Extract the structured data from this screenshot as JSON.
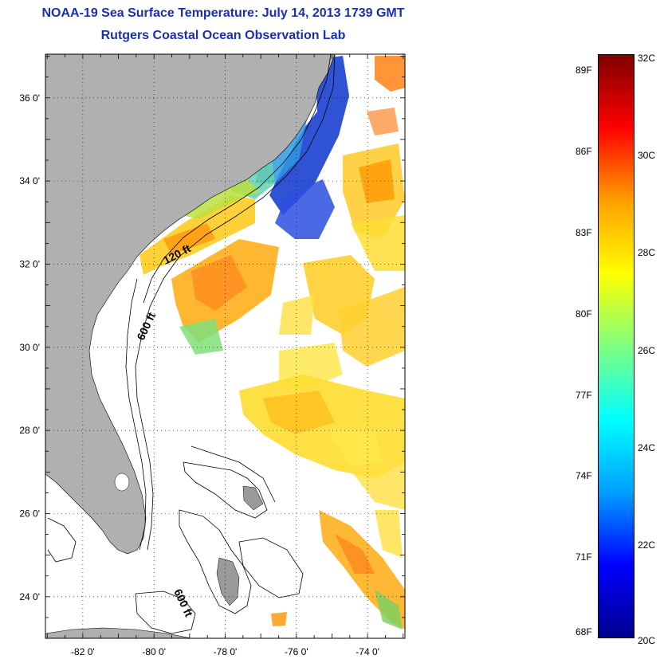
{
  "title": {
    "line1": "NOAA-19 Sea Surface Temperature:  July 14, 2013 1739 GMT",
    "line2": "Rutgers Coastal Ocean Observation Lab"
  },
  "map": {
    "lon_range": [
      -83,
      -73
    ],
    "lat_range": [
      23,
      37
    ],
    "lon_ticks": [
      {
        "value": -82,
        "label": "-82 0'"
      },
      {
        "value": -80,
        "label": "-80 0'"
      },
      {
        "value": -78,
        "label": "-78 0'"
      },
      {
        "value": -76,
        "label": "-76 0'"
      },
      {
        "value": -74,
        "label": "-74 0'"
      }
    ],
    "lat_ticks": [
      {
        "value": 24,
        "label": "24 0'"
      },
      {
        "value": 26,
        "label": "26 0'"
      },
      {
        "value": 28,
        "label": "28 0'"
      },
      {
        "value": 30,
        "label": "30 0'"
      },
      {
        "value": 32,
        "label": "32 0'"
      },
      {
        "value": 34,
        "label": "34 0'"
      },
      {
        "value": 36,
        "label": "36 0'"
      }
    ],
    "depth_labels": [
      "120 ft",
      "600 ft",
      "600 ft"
    ],
    "land_color": "#b0b0b0",
    "grid": "dotted"
  },
  "colorbar": {
    "celsius_labels": [
      "32C",
      "30C",
      "28C",
      "26C",
      "24C",
      "22C",
      "20C"
    ],
    "fahrenheit_labels": [
      "89F",
      "86F",
      "83F",
      "80F",
      "77F",
      "74F",
      "71F",
      "68F"
    ],
    "range_c": [
      20,
      32
    ],
    "colors": [
      "#00008f",
      "#0000ff",
      "#00a0ff",
      "#00ffff",
      "#7fff7f",
      "#ffff00",
      "#ff9f00",
      "#ff0000",
      "#7f0000"
    ]
  }
}
